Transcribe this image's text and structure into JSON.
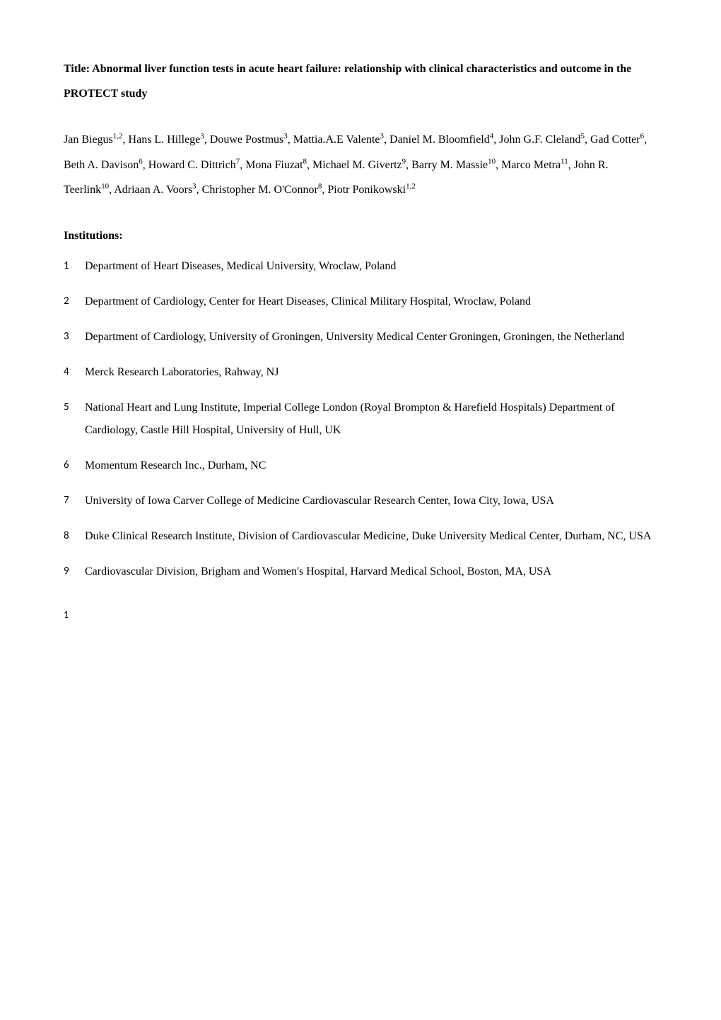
{
  "title_prefix": "Title: ",
  "title_text": "Abnormal liver function tests in acute heart failure: relationship with clinical characteristics and outcome in the PROTECT study",
  "authors": [
    {
      "name": "Jan Biegus",
      "affil": "1,2"
    },
    {
      "name": "Hans L. Hillege",
      "affil": "3"
    },
    {
      "name": "Douwe Postmus",
      "affil": "3"
    },
    {
      "name": "Mattia.A.E Valente",
      "affil": "3"
    },
    {
      "name": "Daniel M. Bloomfield",
      "affil": "4"
    },
    {
      "name": "John G.F. Cleland",
      "affil": "5"
    },
    {
      "name": "Gad Cotter",
      "affil": "6"
    },
    {
      "name": "Beth A. Davison",
      "affil": "6"
    },
    {
      "name": "Howard C. Dittrich",
      "affil": "7"
    },
    {
      "name": "Mona Fiuzat",
      "affil": "8"
    },
    {
      "name": "Michael M. Givertz",
      "affil": "9"
    },
    {
      "name": "Barry M. Massie",
      "affil": "10"
    },
    {
      "name": "Marco Metra",
      "affil": "11"
    },
    {
      "name": "John R. Teerlink",
      "affil": "10"
    },
    {
      "name": "Adriaan A. Voors",
      "affil": "3"
    },
    {
      "name": "Christopher M. O'Connor",
      "affil": "8"
    },
    {
      "name": "Piotr Ponikowski",
      "affil": "1,2"
    }
  ],
  "institutions_heading": "Institutions:",
  "institutions": [
    {
      "num": "1",
      "text": "Department of Heart Diseases, Medical University, Wroclaw, Poland"
    },
    {
      "num": "2",
      "text": "Department of Cardiology,  Center for Heart Diseases, Clinical Military Hospital, Wroclaw, Poland"
    },
    {
      "num": "3",
      "text": "Department of Cardiology, University of Groningen, University Medical Center Groningen, Groningen, the Netherland"
    },
    {
      "num": "4",
      "text": "Merck Research Laboratories, Rahway, NJ"
    },
    {
      "num": "5",
      "text": "National Heart and Lung Institute, Imperial College London (Royal Brompton & Harefield Hospitals) Department of Cardiology, Castle Hill Hospital, University of Hull, UK"
    },
    {
      "num": "6",
      "text": "Momentum Research Inc., Durham, NC"
    },
    {
      "num": "7",
      "text": "University of Iowa Carver College of Medicine Cardiovascular Research Center, Iowa City, Iowa, USA"
    },
    {
      "num": "8",
      "text": "Duke Clinical Research Institute, Division of Cardiovascular Medicine, Duke University Medical Center, Durham, NC, USA"
    },
    {
      "num": "9",
      "text": "Cardiovascular Division, Brigham and Women's Hospital, Harvard Medical School, Boston, MA, USA"
    }
  ],
  "page_number": "1"
}
